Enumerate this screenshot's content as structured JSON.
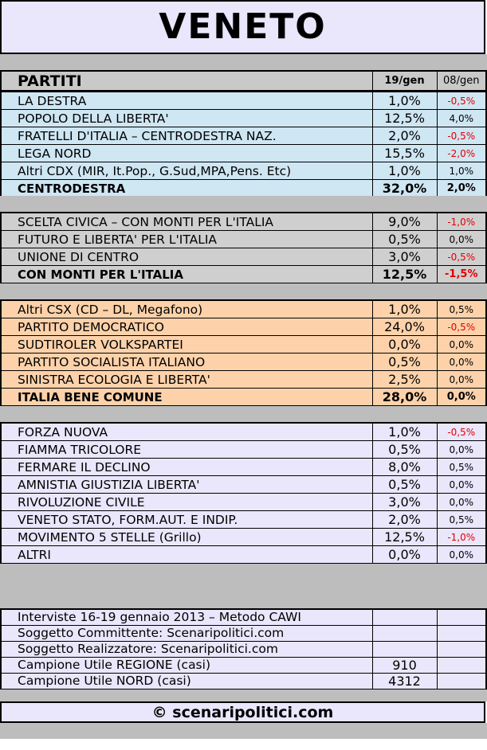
{
  "title": "VENETO",
  "header": {
    "label": "PARTITI",
    "col1": "19/gen",
    "col2": "08/gen"
  },
  "groups": [
    {
      "rows": [
        {
          "name": "LA DESTRA",
          "val": "1,0%",
          "chg": "-0,5%"
        },
        {
          "name": "POPOLO DELLA LIBERTA'",
          "val": "12,5%",
          "chg": "4,0%"
        },
        {
          "name": "FRATELLI D'ITALIA – CENTRODESTRA NAZ.",
          "val": "2,0%",
          "chg": "-0,5%"
        },
        {
          "name": "LEGA NORD",
          "val": "15,5%",
          "chg": "-2,0%"
        },
        {
          "name": "Altri CDX (MIR, It.Pop., G.Sud,MPA,Pens. Etc)",
          "val": "1,0%",
          "chg": "1,0%"
        }
      ],
      "total": {
        "name": "CENTRODESTRA",
        "val": "32,0%",
        "chg": "2,0%"
      }
    },
    {
      "rows": [
        {
          "name": "SCELTA CIVICA – CON MONTI PER L'ITALIA",
          "val": "9,0%",
          "chg": "-1,0%"
        },
        {
          "name": "FUTURO E LIBERTA' PER L'ITALIA",
          "val": "0,5%",
          "chg": "0,0%"
        },
        {
          "name": "UNIONE DI CENTRO",
          "val": "3,0%",
          "chg": "-0,5%"
        }
      ],
      "total": {
        "name": "CON MONTI PER L'ITALIA",
        "val": "12,5%",
        "chg": "-1,5%"
      }
    },
    {
      "rows": [
        {
          "name": "Altri CSX (CD – DL, Megafono)",
          "val": "1,0%",
          "chg": "0,5%"
        },
        {
          "name": "PARTITO DEMOCRATICO",
          "val": "24,0%",
          "chg": "-0,5%"
        },
        {
          "name": "SUDTIROLER VOLKSPARTEI",
          "val": "0,0%",
          "chg": "0,0%"
        },
        {
          "name": "PARTITO SOCIALISTA ITALIANO",
          "val": "0,5%",
          "chg": "0,0%"
        },
        {
          "name": "SINISTRA ECOLOGIA E LIBERTA'",
          "val": "2,5%",
          "chg": "0,0%"
        }
      ],
      "total": {
        "name": "ITALIA BENE COMUNE",
        "val": "28,0%",
        "chg": "0,0%"
      }
    },
    {
      "rows": [
        {
          "name": "FORZA NUOVA",
          "val": "1,0%",
          "chg": "-0,5%"
        },
        {
          "name": "FIAMMA TRICOLORE",
          "val": "0,5%",
          "chg": "0,0%"
        },
        {
          "name": "FERMARE IL DECLINO",
          "val": "8,0%",
          "chg": "0,5%"
        },
        {
          "name": "AMNISTIA GIUSTIZIA LIBERTA'",
          "val": "0,5%",
          "chg": "0,0%"
        },
        {
          "name": "RIVOLUZIONE CIVILE",
          "val": "3,0%",
          "chg": "0,0%"
        },
        {
          "name": "VENETO STATO, FORM.AUT. E INDIP.",
          "val": "2,0%",
          "chg": "0,5%"
        },
        {
          "name": "MOVIMENTO 5 STELLE (Grillo)",
          "val": "12,5%",
          "chg": "-1,0%"
        },
        {
          "name": "ALTRI",
          "val": "0,0%",
          "chg": "0,0%"
        }
      ]
    }
  ],
  "info": [
    {
      "text": "Interviste 16-19 gennaio 2013 – Metodo CAWI",
      "val": ""
    },
    {
      "text": "Soggetto Committente: Scenaripolitici.com",
      "val": ""
    },
    {
      "text": "Soggetto Realizzatore: Scenaripolitici.com",
      "val": ""
    },
    {
      "text": "Campione Utile REGIONE (casi)",
      "val": "910"
    },
    {
      "text": "Campione Utile NORD (casi)",
      "val": "4312"
    }
  ],
  "footer": "© scenaripolitici.com"
}
